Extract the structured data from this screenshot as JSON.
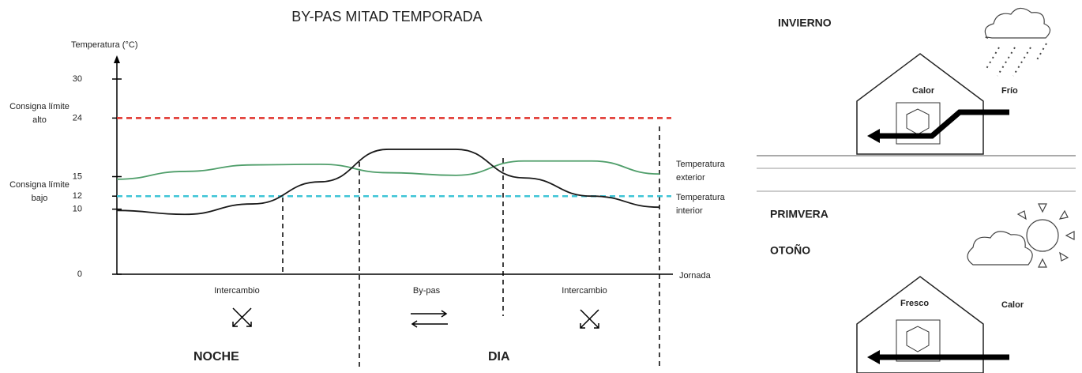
{
  "chart_data": {
    "type": "line",
    "title": "BY-PAS  MITAD TEMPORADA",
    "y_label": "Temperatura (°C)",
    "x_label": "Jornada",
    "categories": [
      null,
      null,
      null,
      null,
      null,
      null,
      null,
      null,
      null
    ],
    "series": [
      {
        "name": "Temperatura exterior",
        "color": "#4f9e6a",
        "values": [
          14.6,
          15.8,
          16.8,
          16.9,
          15.6,
          15.2,
          17.4,
          17.4,
          15.4
        ]
      },
      {
        "name": "Temperatura interior",
        "color": "#1a1a1a",
        "values": [
          9.8,
          9.2,
          10.8,
          14.2,
          19.2,
          19.2,
          14.8,
          12.0,
          10.3
        ]
      }
    ],
    "reference_lines": [
      {
        "value": 24,
        "label": "Consigna límite alto",
        "color": "#e0302a"
      },
      {
        "value": 12,
        "label": "Consigna límite bajo",
        "color": "#3fc4d6"
      }
    ],
    "ylim": [
      0,
      30
    ],
    "yticks": [
      0,
      10,
      12,
      15,
      24,
      30
    ],
    "phases": [
      "Intercambio",
      "By-pas",
      "Intercambio"
    ],
    "periods": [
      "NOCHE",
      "DIA"
    ]
  },
  "panels": {
    "winter": {
      "title": "INVIERNO",
      "inside": "Calor",
      "outside": "Frío"
    },
    "mid": {
      "title_1": "PRIMVERA",
      "title_2": "OTOÑO",
      "inside": "Fresco",
      "outside": "Calor"
    }
  }
}
